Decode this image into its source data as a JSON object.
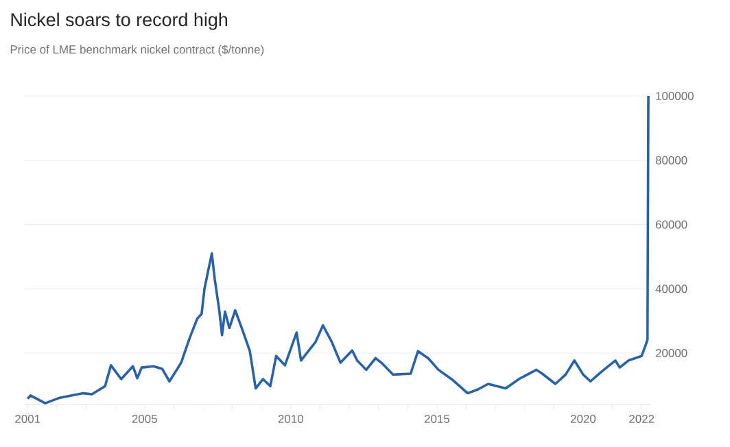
{
  "chart_data": {
    "type": "line",
    "title": "Nickel soars to record high",
    "subtitle": "Price of LME benchmark nickel contract ($/tonne)",
    "xlim": [
      2000.9,
      2022.3
    ],
    "ylim": [
      4000,
      100000
    ],
    "xticks": [
      2001,
      {
        "value": 2002,
        "label": null
      },
      {
        "value": 2003,
        "label": null
      },
      {
        "value": 2004,
        "label": null
      },
      2005,
      {
        "value": 2006,
        "label": null
      },
      {
        "value": 2007,
        "label": null
      },
      {
        "value": 2008,
        "label": null
      },
      {
        "value": 2009,
        "label": null
      },
      2010,
      {
        "value": 2011,
        "label": null
      },
      {
        "value": 2012,
        "label": null
      },
      {
        "value": 2013,
        "label": null
      },
      {
        "value": 2014,
        "label": null
      },
      2015,
      {
        "value": 2016,
        "label": null
      },
      {
        "value": 2017,
        "label": null
      },
      {
        "value": 2018,
        "label": null
      },
      {
        "value": 2019,
        "label": null
      },
      2020,
      {
        "value": 2021,
        "label": null
      },
      2022
    ],
    "yticks": [
      20000,
      40000,
      60000,
      80000,
      100000
    ],
    "grid": "y",
    "marker": "none",
    "line_style": "solid",
    "series": [
      {
        "color": "#2763a6",
        "x": [
          2001.0,
          2001.1,
          2001.6,
          2002.1,
          2002.9,
          2003.2,
          2003.65,
          2003.85,
          2004.2,
          2004.6,
          2004.75,
          2004.9,
          2005.3,
          2005.6,
          2005.85,
          2006.1,
          2006.25,
          2006.55,
          2006.8,
          2006.95,
          2007.05,
          2007.2,
          2007.3,
          2007.4,
          2007.55,
          2007.65,
          2007.75,
          2007.9,
          2008.1,
          2008.35,
          2008.6,
          2008.8,
          2009.05,
          2009.3,
          2009.5,
          2009.8,
          2010.2,
          2010.35,
          2010.85,
          2011.1,
          2011.4,
          2011.7,
          2012.1,
          2012.27,
          2012.58,
          2012.9,
          2013.1,
          2013.5,
          2014.1,
          2014.35,
          2014.7,
          2015.05,
          2015.5,
          2016.05,
          2016.4,
          2016.75,
          2017.35,
          2017.8,
          2018.4,
          2018.6,
          2019.05,
          2019.4,
          2019.7,
          2020.0,
          2020.25,
          2020.6,
          2021.1,
          2021.25,
          2021.55,
          2022.0,
          2022.15,
          2022.2,
          2022.23
        ],
        "values": [
          5800,
          6800,
          4400,
          6100,
          7500,
          7200,
          9700,
          16200,
          11900,
          15900,
          12200,
          15500,
          15900,
          15100,
          11200,
          14800,
          17000,
          24900,
          30700,
          32200,
          40100,
          46700,
          51000,
          43000,
          33600,
          25600,
          32900,
          27800,
          33300,
          27100,
          20600,
          9000,
          11900,
          9700,
          19100,
          16200,
          26400,
          17700,
          23500,
          28600,
          23500,
          17000,
          20800,
          17700,
          14800,
          18400,
          17000,
          13300,
          13600,
          20600,
          18400,
          14800,
          11900,
          7500,
          8700,
          10400,
          9000,
          11900,
          14800,
          13600,
          10400,
          13300,
          17700,
          13300,
          11200,
          14000,
          17700,
          15500,
          17700,
          19100,
          22800,
          24200,
          100000
        ]
      }
    ]
  }
}
